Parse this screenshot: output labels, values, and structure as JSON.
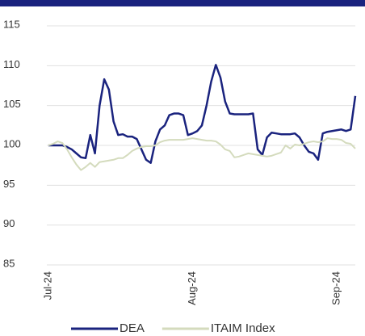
{
  "chart_data": {
    "type": "line",
    "categories": [
      "Jul-24",
      null,
      null,
      null,
      null,
      null,
      null,
      null,
      null,
      null,
      null,
      null,
      null,
      null,
      null,
      null,
      null,
      null,
      null,
      null,
      null,
      null,
      null,
      null,
      null,
      null,
      null,
      null,
      null,
      null,
      null,
      "Aug-24",
      null,
      null,
      null,
      null,
      null,
      null,
      null,
      null,
      null,
      null,
      null,
      null,
      null,
      null,
      null,
      null,
      null,
      null,
      null,
      null,
      null,
      null,
      null,
      null,
      null,
      null,
      null,
      null,
      null,
      null,
      "Sep-24",
      null,
      null,
      null,
      null
    ],
    "series": [
      {
        "name": "DEA",
        "color": "#1a237e",
        "values": [
          100,
          100,
          100,
          100,
          99.8,
          99.5,
          99,
          98.5,
          98.4,
          101.3,
          99,
          105,
          108.3,
          107,
          103,
          101.3,
          101.4,
          101.1,
          101.1,
          100.8,
          99.5,
          98.2,
          97.8,
          100.5,
          102,
          102.5,
          103.8,
          104,
          104,
          103.8,
          101.3,
          101.5,
          101.8,
          102.5,
          105,
          108,
          110.1,
          108.5,
          105.5,
          104,
          103.9,
          103.9,
          103.9,
          103.9,
          104,
          99.5,
          98.8,
          101,
          101.6,
          101.5,
          101.4,
          101.4,
          101.4,
          101.5,
          101,
          100,
          99.2,
          99,
          98.2,
          101.5,
          101.7,
          101.8,
          101.9,
          102,
          101.8,
          102,
          106.2
        ]
      },
      {
        "name": "ITAIM Index",
        "color": "#d4dbbd",
        "values": [
          100,
          100.2,
          100.5,
          100.3,
          99.5,
          98.5,
          97.6,
          96.9,
          97.3,
          97.8,
          97.3,
          97.9,
          98,
          98.1,
          98.2,
          98.4,
          98.4,
          98.8,
          99.3,
          99.6,
          99.8,
          99.9,
          99.9,
          100,
          100.4,
          100.6,
          100.7,
          100.7,
          100.7,
          100.7,
          100.8,
          100.9,
          100.8,
          100.7,
          100.6,
          100.6,
          100.5,
          100.1,
          99.5,
          99.3,
          98.5,
          98.6,
          98.8,
          99,
          98.9,
          98.8,
          98.7,
          98.6,
          98.7,
          98.9,
          99.1,
          100,
          99.6,
          100.1,
          100,
          100.2,
          100.4,
          100.5,
          100.4,
          100.5,
          100.9,
          100.8,
          100.8,
          100.7,
          100.3,
          100.2,
          99.6
        ]
      }
    ],
    "ylim": [
      85,
      115
    ],
    "yticks": [
      85,
      90,
      95,
      100,
      105,
      110,
      115
    ],
    "grid": true,
    "legend": "bottom"
  }
}
